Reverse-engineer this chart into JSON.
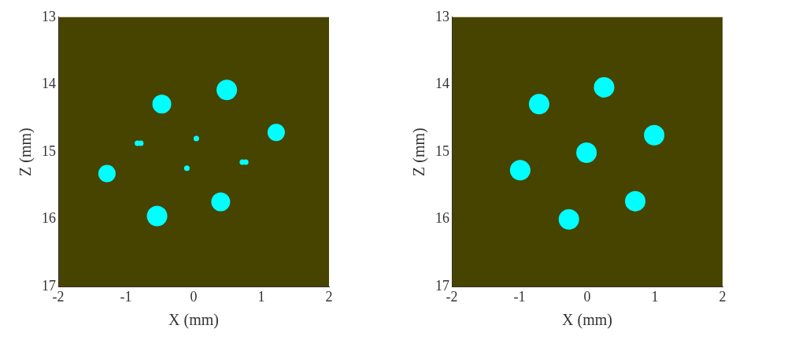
{
  "chart_data": [
    {
      "type": "bubble",
      "xlabel": "X (mm)",
      "ylabel": "Z (mm)",
      "xlim": [
        -2,
        2
      ],
      "xticks": [
        -2,
        -1,
        0,
        1,
        2
      ],
      "ylim": [
        17,
        13
      ],
      "yticks": [
        13,
        14,
        15,
        16,
        17
      ],
      "series": [
        {
          "color": "#00ffff",
          "x": [
            0.49,
            -0.47,
            1.22,
            -1.28,
            0.4,
            -0.54
          ],
          "values": [
            14.08,
            14.29,
            14.71,
            15.32,
            15.74,
            15.95
          ],
          "sizes": [
            1,
            0.85,
            0.72,
            0.72,
            0.85,
            1
          ]
        },
        {
          "type": "scatter",
          "color": "#00ffff",
          "x": [
            -0.83,
            -0.78,
            0.04,
            -0.1,
            0.72,
            0.77
          ],
          "values": [
            14.87,
            14.87,
            14.8,
            15.24,
            15.15,
            15.15
          ]
        }
      ]
    },
    {
      "type": "bubble",
      "xlabel": "X (mm)",
      "ylabel": "Z (mm)",
      "xlim": [
        -2,
        2
      ],
      "xticks": [
        -2,
        -1,
        0,
        1,
        2
      ],
      "ylim": [
        17,
        13
      ],
      "yticks": [
        13,
        14,
        15,
        16,
        17
      ],
      "series": [
        {
          "color": "#00ffff",
          "x": [
            0.25,
            -0.71,
            0.99,
            -0.01,
            -0.99,
            0.71,
            -0.27
          ],
          "values": [
            14.04,
            14.29,
            14.75,
            15.01,
            15.27,
            15.73,
            16.0
          ],
          "sizes": [
            1,
            1,
            1,
            1,
            1,
            1,
            1
          ]
        }
      ]
    }
  ]
}
